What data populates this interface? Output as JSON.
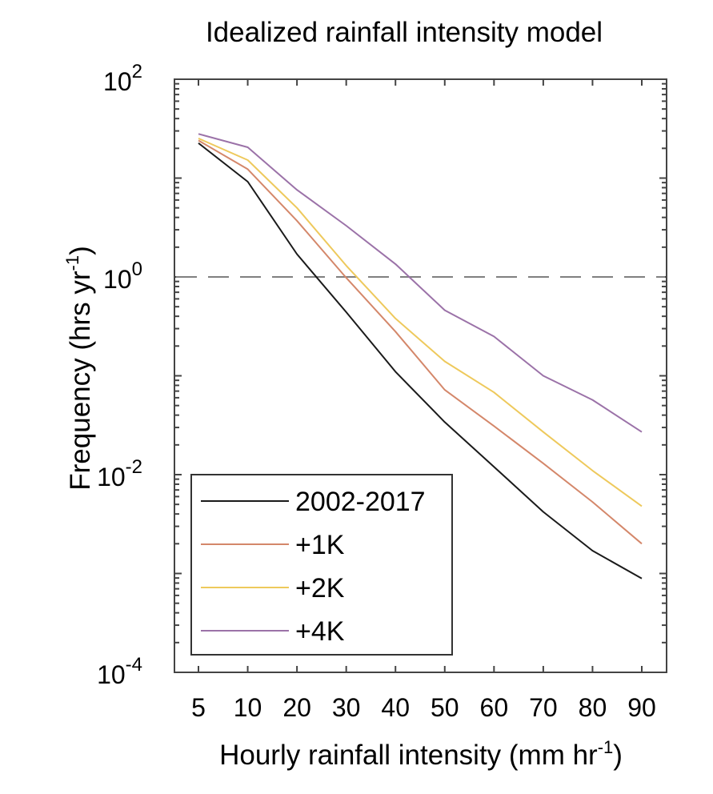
{
  "chart_data": {
    "type": "line",
    "title": "Idealized rainfall intensity model",
    "xlabel": "Hourly rainfall intensity (mm hr",
    "xlabel_sup": "-1",
    "xlabel_end": ")",
    "ylabel": "Frequency (hrs yr",
    "ylabel_sup": "-1",
    "ylabel_end": ")",
    "y_scale": "log",
    "ylim": [
      0.0001,
      100
    ],
    "y_ticks": [
      {
        "base": "10",
        "exp": "2",
        "value": 100
      },
      {
        "base": "10",
        "exp": "0",
        "value": 1
      },
      {
        "base": "10",
        "exp": "-2",
        "value": 0.01
      },
      {
        "base": "10",
        "exp": "-4",
        "value": 0.0001
      }
    ],
    "x_scale": "categorical",
    "categories": [
      "5",
      "10",
      "20",
      "30",
      "40",
      "50",
      "60",
      "70",
      "80",
      "90"
    ],
    "reference_line": {
      "y": 1,
      "style": "dashed",
      "color": "#808080"
    },
    "grid": false,
    "legend_position": "bottom-left",
    "series": [
      {
        "name": "2002-2017",
        "color": "#1a1a1a",
        "values": [
          22.6,
          9.2,
          1.7,
          0.44,
          0.11,
          0.034,
          0.012,
          0.0042,
          0.0017,
          0.00089
        ]
      },
      {
        "name": "+1K",
        "color": "#d4876a",
        "values": [
          24,
          12.3,
          3.7,
          0.98,
          0.28,
          0.072,
          0.031,
          0.013,
          0.0053,
          0.002
        ]
      },
      {
        "name": "+2K",
        "color": "#eec95c",
        "values": [
          25.2,
          15.2,
          5.0,
          1.3,
          0.38,
          0.14,
          0.068,
          0.027,
          0.011,
          0.0048
        ]
      },
      {
        "name": "+4K",
        "color": "#9b72a8",
        "values": [
          28,
          20.5,
          7.6,
          3.3,
          1.35,
          0.46,
          0.25,
          0.1,
          0.057,
          0.027
        ]
      }
    ]
  }
}
